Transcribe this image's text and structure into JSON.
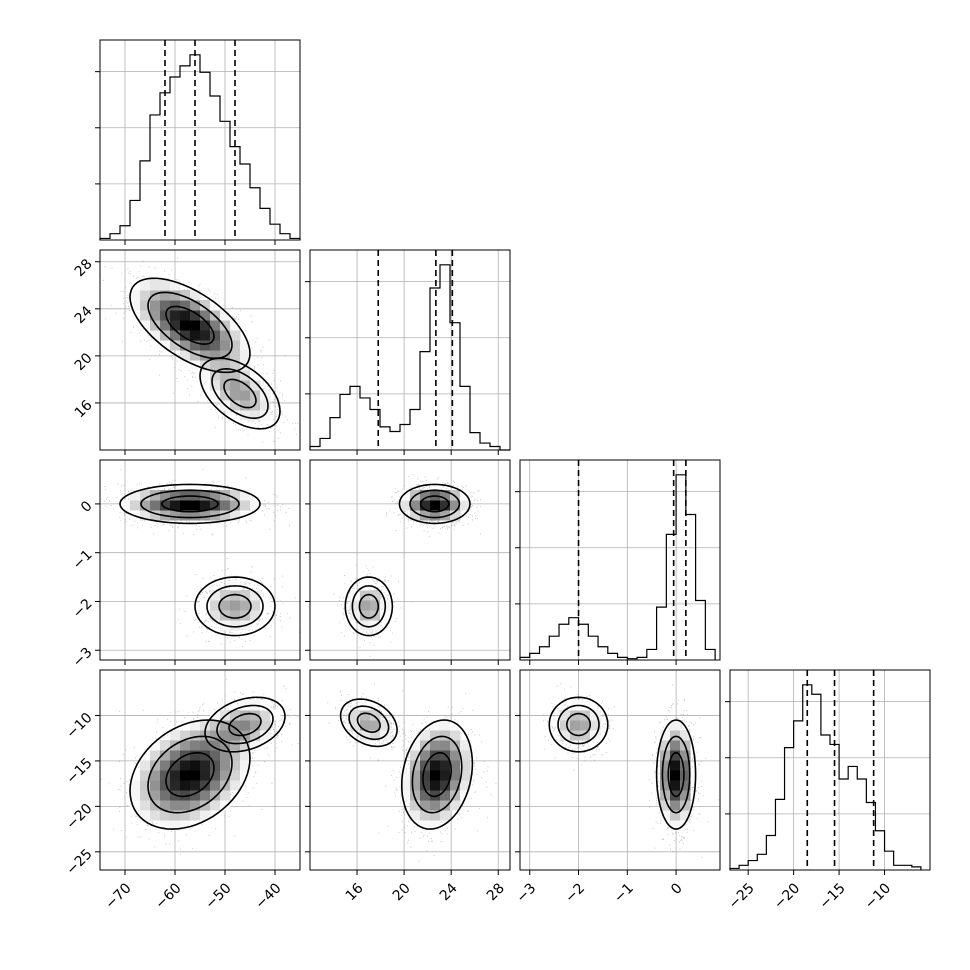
{
  "chart_data": {
    "type": "corner",
    "parameters": [
      {
        "index": 0,
        "range": [
          -75,
          -35
        ],
        "ticks": [
          -70,
          -60,
          -50,
          -40
        ],
        "tick_labels": [
          "−70",
          "−60",
          "−50",
          "−40"
        ],
        "quantiles": [
          -62,
          -56,
          -48
        ]
      },
      {
        "index": 1,
        "range": [
          12,
          29
        ],
        "ticks": [
          16,
          20,
          24,
          28
        ],
        "tick_labels": [
          "16",
          "20",
          "24",
          "28"
        ],
        "quantiles": [
          17.8,
          22.7,
          24.1
        ]
      },
      {
        "index": 2,
        "range": [
          -3.2,
          0.9
        ],
        "ticks": [
          -3,
          -2,
          -1,
          0
        ],
        "tick_labels": [
          "−3",
          "−2",
          "−1",
          "0"
        ],
        "quantiles": [
          -2.0,
          -0.05,
          0.2
        ]
      },
      {
        "index": 3,
        "range": [
          -27,
          -5
        ],
        "ticks": [
          -25,
          -20,
          -15,
          -10
        ],
        "tick_labels": [
          "−25",
          "−20",
          "−15",
          "−10"
        ],
        "quantiles": [
          -18.5,
          -15.5,
          -11.2
        ]
      }
    ],
    "histograms": [
      {
        "param": 0,
        "bins": [
          -75,
          -73,
          -71,
          -69,
          -67,
          -65,
          -63,
          -61,
          -59,
          -57,
          -55,
          -53,
          -51,
          -49,
          -47,
          -45,
          -43,
          -41,
          -39,
          -37,
          -35
        ],
        "counts": [
          1,
          4,
          9,
          25,
          50,
          79,
          93,
          103,
          110,
          117,
          106,
          91,
          75,
          59,
          48,
          33,
          20,
          10,
          4,
          1
        ]
      },
      {
        "param": 1,
        "bins": [
          12,
          12.85,
          13.7,
          14.55,
          15.4,
          16.25,
          17.1,
          17.95,
          18.8,
          19.65,
          20.5,
          21.35,
          22.2,
          23.05,
          23.9,
          24.75,
          25.6,
          26.45,
          27.3,
          28.15,
          29
        ],
        "counts": [
          3,
          10,
          28,
          48,
          55,
          45,
          35,
          20,
          16,
          22,
          35,
          85,
          140,
          160,
          110,
          55,
          15,
          6,
          3,
          0
        ]
      },
      {
        "param": 2,
        "bins": [
          -3.2,
          -3.0,
          -2.8,
          -2.6,
          -2.4,
          -2.2,
          -2.0,
          -1.8,
          -1.6,
          -1.4,
          -1.2,
          -1.0,
          -0.8,
          -0.6,
          -0.4,
          -0.2,
          0.0,
          0.2,
          0.4,
          0.6,
          0.8
        ],
        "counts": [
          2,
          5,
          10,
          18,
          27,
          32,
          27,
          18,
          10,
          5,
          2,
          1,
          2,
          8,
          40,
          95,
          140,
          110,
          45,
          8
        ]
      },
      {
        "param": 3,
        "bins": [
          -27,
          -26,
          -25,
          -24,
          -23,
          -22,
          -21,
          -20,
          -19,
          -18,
          -17,
          -16,
          -15,
          -14,
          -13,
          -12,
          -11,
          -10,
          -9,
          -8,
          -7,
          -6
        ],
        "counts": [
          1,
          3,
          6,
          10,
          22,
          45,
          78,
          95,
          118,
          112,
          86,
          80,
          58,
          66,
          58,
          43,
          25,
          12,
          3,
          3,
          2
        ]
      }
    ],
    "joint_modes": [
      {
        "x_param": 0,
        "y_param": 1,
        "modes": [
          {
            "center": [
              -57,
              22.6
            ],
            "spread": [
              6,
              2.0
            ],
            "corr": -0.6,
            "weight": 0.68
          },
          {
            "center": [
              -47,
              16.8
            ],
            "spread": [
              4,
              1.5
            ],
            "corr": -0.5,
            "weight": 0.32
          }
        ]
      },
      {
        "x_param": 0,
        "y_param": 2,
        "modes": [
          {
            "center": [
              -57,
              0.0
            ],
            "spread": [
              7,
              0.2
            ],
            "corr": 0.0,
            "weight": 0.68
          },
          {
            "center": [
              -48,
              -2.1
            ],
            "spread": [
              4,
              0.3
            ],
            "corr": 0.0,
            "weight": 0.32
          }
        ]
      },
      {
        "x_param": 1,
        "y_param": 2,
        "modes": [
          {
            "center": [
              22.6,
              0.0
            ],
            "spread": [
              1.5,
              0.2
            ],
            "corr": 0.0,
            "weight": 0.68
          },
          {
            "center": [
              17.0,
              -2.1
            ],
            "spread": [
              1.0,
              0.3
            ],
            "corr": 0.0,
            "weight": 0.32
          }
        ]
      },
      {
        "x_param": 0,
        "y_param": 3,
        "modes": [
          {
            "center": [
              -57,
              -16.5
            ],
            "spread": [
              6,
              3.0
            ],
            "corr": 0.3,
            "weight": 0.68
          },
          {
            "center": [
              -46,
              -11.0
            ],
            "spread": [
              4,
              1.5
            ],
            "corr": 0.3,
            "weight": 0.32
          }
        ]
      },
      {
        "x_param": 1,
        "y_param": 3,
        "modes": [
          {
            "center": [
              22.8,
              -16.5
            ],
            "spread": [
              1.5,
              3.0
            ],
            "corr": 0.2,
            "weight": 0.68
          },
          {
            "center": [
              17.0,
              -10.8
            ],
            "spread": [
              1.2,
              1.3
            ],
            "corr": -0.3,
            "weight": 0.32
          }
        ]
      },
      {
        "x_param": 2,
        "y_param": 3,
        "modes": [
          {
            "center": [
              0.0,
              -16.5
            ],
            "spread": [
              0.2,
              3.0
            ],
            "corr": 0.0,
            "weight": 0.68
          },
          {
            "center": [
              -2.0,
              -11.0
            ],
            "spread": [
              0.3,
              1.5
            ],
            "corr": 0.0,
            "weight": 0.32
          }
        ]
      }
    ],
    "grid": true,
    "contour_levels": 3
  }
}
